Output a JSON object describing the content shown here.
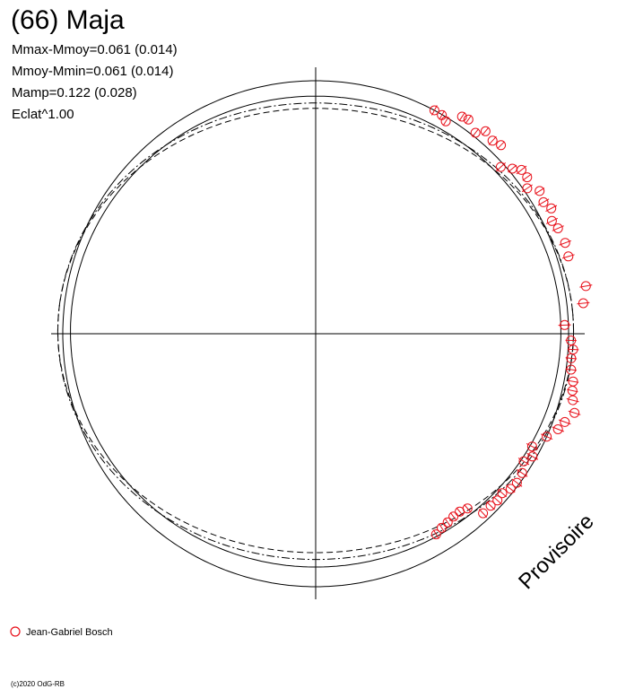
{
  "chart_data": {
    "type": "scatter",
    "title": "(66) Maja",
    "stats": [
      "Mmax-Mmoy=0.061 (0.014)",
      "Mmoy-Mmin=0.061 (0.014)",
      "Mamp=0.122 (0.028)",
      "Eclat^1.00"
    ],
    "watermark": "Provisoire",
    "legend": {
      "label": "Jean-Gabriel Bosch",
      "color": "#e8101a",
      "placement": "bottom-left"
    },
    "copyright": "(c)2020 OdG-RB",
    "grid": false,
    "series": [
      {
        "name": "Jean-Gabriel Bosch",
        "color": "#e8101a",
        "points": [
          {
            "angle": 62.0,
            "r": 1.0,
            "err": 0.022
          },
          {
            "angle": 60.0,
            "r": 0.998,
            "err": 0.02
          },
          {
            "angle": 58.5,
            "r": 0.985,
            "err": 0.02
          },
          {
            "angle": 56.0,
            "r": 1.035,
            "err": 0.02
          },
          {
            "angle": 54.5,
            "r": 1.04,
            "err": 0.02
          },
          {
            "angle": 51.5,
            "r": 1.015,
            "err": 0.02
          },
          {
            "angle": 50.0,
            "r": 1.045,
            "err": 0.02
          },
          {
            "angle": 47.5,
            "r": 1.035,
            "err": 0.022
          },
          {
            "angle": 45.5,
            "r": 1.045,
            "err": 0.02
          },
          {
            "angle": 42.0,
            "r": 0.985,
            "err": 0.025
          },
          {
            "angle": 40.0,
            "r": 1.015,
            "err": 0.022
          },
          {
            "angle": 38.5,
            "r": 1.04,
            "err": 0.025
          },
          {
            "angle": 36.5,
            "r": 1.04,
            "err": 0.022
          },
          {
            "angle": 34.5,
            "r": 1.015,
            "err": 0.025
          },
          {
            "angle": 32.5,
            "r": 1.05,
            "err": 0.022
          },
          {
            "angle": 30.0,
            "r": 1.04,
            "err": 0.025
          },
          {
            "angle": 28.0,
            "r": 1.055,
            "err": 0.025
          },
          {
            "angle": 25.5,
            "r": 1.035,
            "err": 0.025
          },
          {
            "angle": 23.5,
            "r": 1.045,
            "err": 0.025
          },
          {
            "angle": 20.0,
            "r": 1.05,
            "err": 0.025
          },
          {
            "angle": 17.0,
            "r": 1.045,
            "err": 0.025
          },
          {
            "angle": 10.0,
            "r": 1.085,
            "err": 0.025
          },
          {
            "angle": 6.5,
            "r": 1.065,
            "err": 0.025
          },
          {
            "angle": 2.0,
            "r": 0.985,
            "err": 0.025
          },
          {
            "angle": -1.5,
            "r": 1.01,
            "err": 0.022
          },
          {
            "angle": -3.5,
            "r": 1.02,
            "err": 0.022
          },
          {
            "angle": -5.5,
            "r": 1.015,
            "err": 0.022
          },
          {
            "angle": -8.0,
            "r": 1.02,
            "err": 0.022
          },
          {
            "angle": -10.5,
            "r": 1.035,
            "err": 0.022
          },
          {
            "angle": -12.5,
            "r": 1.04,
            "err": 0.022
          },
          {
            "angle": -14.5,
            "r": 1.05,
            "err": 0.025
          },
          {
            "angle": -17.0,
            "r": 1.07,
            "err": 0.025
          },
          {
            "angle": -19.5,
            "r": 1.045,
            "err": 0.025
          },
          {
            "angle": -21.5,
            "r": 1.03,
            "err": 0.025
          },
          {
            "angle": -24.0,
            "r": 1.0,
            "err": 0.025
          },
          {
            "angle": -27.5,
            "r": 0.965,
            "err": 0.025
          },
          {
            "angle": -29.5,
            "r": 0.985,
            "err": 0.025
          },
          {
            "angle": -31.5,
            "r": 0.965,
            "err": 0.025
          },
          {
            "angle": -34.0,
            "r": 0.985,
            "err": 0.025
          },
          {
            "angle": -36.5,
            "r": 0.99,
            "err": 0.025
          },
          {
            "angle": -38.5,
            "r": 0.985,
            "err": 0.022
          },
          {
            "angle": -40.5,
            "r": 0.97,
            "err": 0.022
          },
          {
            "angle": -42.5,
            "r": 0.975,
            "err": 0.022
          },
          {
            "angle": -44.5,
            "r": 0.97,
            "err": 0.022
          },
          {
            "angle": -47.0,
            "r": 0.97,
            "err": 0.022
          },
          {
            "angle": -49.0,
            "r": 0.915,
            "err": 0.02
          },
          {
            "angle": -51.0,
            "r": 0.905,
            "err": 0.02
          },
          {
            "angle": -53.0,
            "r": 0.905,
            "err": 0.02
          },
          {
            "angle": -55.0,
            "r": 0.91,
            "err": 0.02
          },
          {
            "angle": -57.0,
            "r": 0.915,
            "err": 0.02
          },
          {
            "angle": -59.0,
            "r": 0.925,
            "err": 0.02
          }
        ]
      }
    ],
    "model_curves": [
      {
        "style": "solid",
        "a": 1.0,
        "b": 1.0,
        "amp": 0.0
      },
      {
        "style": "solid",
        "a": 0.96,
        "b": 0.94,
        "amp": 0.01
      },
      {
        "style": "dashed",
        "a": 0.985,
        "b": 0.91,
        "amp": 0.035
      },
      {
        "style": "dashdot",
        "a": 0.99,
        "b": 0.93,
        "amp": 0.03
      }
    ]
  }
}
